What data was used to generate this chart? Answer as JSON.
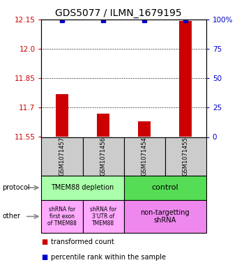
{
  "title": "GDS5077 / ILMN_1679195",
  "samples": [
    "GSM1071457",
    "GSM1071456",
    "GSM1071454",
    "GSM1071455"
  ],
  "red_values": [
    11.77,
    11.67,
    11.63,
    12.14
  ],
  "blue_values": [
    99,
    99,
    99,
    99
  ],
  "ylim_left": [
    11.55,
    12.15
  ],
  "ylim_right": [
    0,
    100
  ],
  "yticks_left": [
    11.55,
    11.7,
    11.85,
    12.0,
    12.15
  ],
  "yticks_right": [
    0,
    25,
    50,
    75,
    100
  ],
  "ytick_labels_right": [
    "0",
    "25",
    "50",
    "75",
    "100%"
  ],
  "grid_lines": [
    12.0,
    11.85,
    11.7
  ],
  "bar_color": "#cc0000",
  "dot_color": "#0000cc",
  "sample_box_color": "#cccccc",
  "protocol_colors": [
    "#aaffaa",
    "#55dd55"
  ],
  "other_colors": [
    "#ffaaff",
    "#ffaaff",
    "#ee88ee"
  ],
  "protocol_labels": [
    "TMEM88 depletion",
    "control"
  ],
  "other_labels": [
    "shRNA for\nfirst exon\nof TMEM88",
    "shRNA for\n3'UTR of\nTMEM88",
    "non-targetting\nshRNA"
  ],
  "protocol_row_label": "protocol",
  "other_row_label": "other",
  "legend_items": [
    {
      "color": "#cc0000",
      "label": "transformed count"
    },
    {
      "color": "#0000cc",
      "label": "percentile rank within the sample"
    }
  ],
  "title_fontsize": 10,
  "tick_fontsize": 7.5,
  "sample_fontsize": 6,
  "proto_fontsize": 7,
  "other_fontsize": 5.5,
  "legend_fontsize": 7
}
